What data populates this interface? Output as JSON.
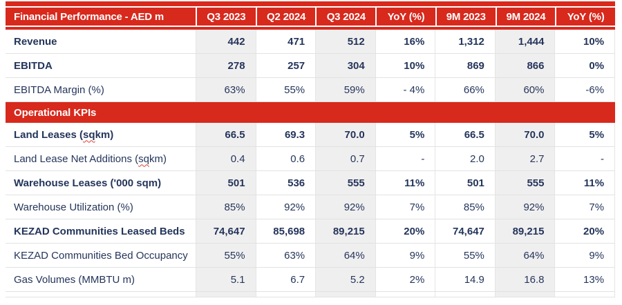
{
  "header": {
    "title": "Financial Performance - AED m",
    "columns": [
      "Q3 2023",
      "Q2 2024",
      "Q3 2024",
      "YoY (%)",
      "9M 2023",
      "9M 2024",
      "YoY (%)"
    ]
  },
  "section_header": "Operational KPIs",
  "shaded_column_indexes": [
    0,
    2,
    5
  ],
  "financial_rows": [
    {
      "label": "Revenue",
      "bold": true,
      "values": [
        "442",
        "471",
        "512",
        "16%",
        "1,312",
        "1,444",
        "10%"
      ]
    },
    {
      "label": "EBITDA",
      "bold": true,
      "values": [
        "278",
        "257",
        "304",
        "10%",
        "869",
        "866",
        "0%"
      ]
    },
    {
      "label": "EBITDA Margin (%)",
      "bold": false,
      "values": [
        "63%",
        "55%",
        "59%",
        "- 4%",
        "66%",
        "60%",
        "-6%"
      ]
    }
  ],
  "operational_rows": [
    {
      "label": "Land Leases (sq km)",
      "squiggle": "sq",
      "bold": true,
      "values": [
        "66.5",
        "69.3",
        "70.0",
        "5%",
        "66.5",
        "70.0",
        "5%"
      ]
    },
    {
      "label": "Land Lease Net Additions (sq km)",
      "squiggle": "sq",
      "bold": false,
      "values": [
        "0.4",
        "0.6",
        "0.7",
        "-",
        "2.0",
        "2.7",
        "-"
      ]
    },
    {
      "label": "Warehouse Leases ('000 sqm)",
      "bold": true,
      "values": [
        "501",
        "536",
        "555",
        "11%",
        "501",
        "555",
        "11%"
      ]
    },
    {
      "label": "Warehouse Utilization (%)",
      "bold": false,
      "values": [
        "85%",
        "92%",
        "92%",
        "7%",
        "85%",
        "92%",
        "7%"
      ]
    },
    {
      "label": "KEZAD Communities Leased Beds",
      "bold": true,
      "values": [
        "74,647",
        "85,698",
        "89,215",
        "20%",
        "74,647",
        "89,215",
        "20%"
      ]
    },
    {
      "label": "KEZAD Communities Bed Occupancy",
      "bold": false,
      "values": [
        "55%",
        "63%",
        "64%",
        "9%",
        "55%",
        "64%",
        "9%"
      ]
    },
    {
      "label": "Gas Volumes (MMBTU m)",
      "bold": false,
      "values": [
        "5.1",
        "6.7",
        "5.2",
        "2%",
        "14.9",
        "16.8",
        "13%"
      ]
    }
  ],
  "colors": {
    "brand_red": "#D8291D",
    "navy_text": "#24355B",
    "column_shade": "#F0EFEF",
    "row_border": "#E2E2E2"
  }
}
